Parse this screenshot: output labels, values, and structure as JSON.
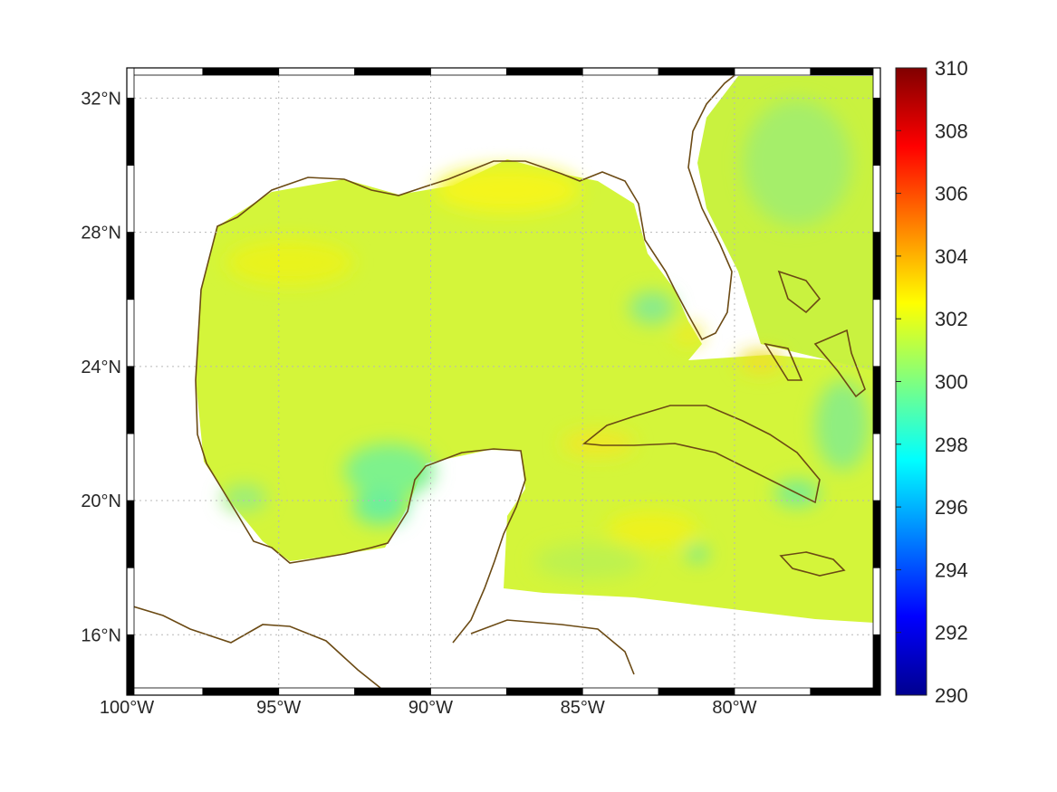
{
  "map": {
    "projection": "equirectangular",
    "lon_range": [
      -100,
      -75.2
    ],
    "lat_range": [
      14.2,
      32.9
    ],
    "lon_ticks": [
      {
        "value": -100,
        "label": "100°W"
      },
      {
        "value": -95,
        "label": "95°W"
      },
      {
        "value": -90,
        "label": "90°W"
      },
      {
        "value": -85,
        "label": "85°W"
      },
      {
        "value": -80,
        "label": "80°W"
      }
    ],
    "lat_ticks": [
      {
        "value": 16,
        "label": "16°N"
      },
      {
        "value": 20,
        "label": "20°N"
      },
      {
        "value": 24,
        "label": "24°N"
      },
      {
        "value": 28,
        "label": "28°N"
      },
      {
        "value": 32,
        "label": "32°N"
      }
    ],
    "grid": true,
    "coastline_color": "#6b4a14",
    "field_base_color": "#d4f53a"
  },
  "colorbar": {
    "colormap": "jet",
    "range": [
      290,
      310
    ],
    "ticks": [
      "310",
      "308",
      "306",
      "304",
      "302",
      "300",
      "298",
      "296",
      "294",
      "292",
      "290"
    ],
    "placement": "right"
  },
  "chart_data": {
    "type": "heatmap",
    "variable_range": [
      290,
      310
    ],
    "typical_value": 301.5,
    "coverage": "Gulf of Mexico and NW Caribbean ocean",
    "title": "",
    "xlabel": "",
    "ylabel": ""
  }
}
